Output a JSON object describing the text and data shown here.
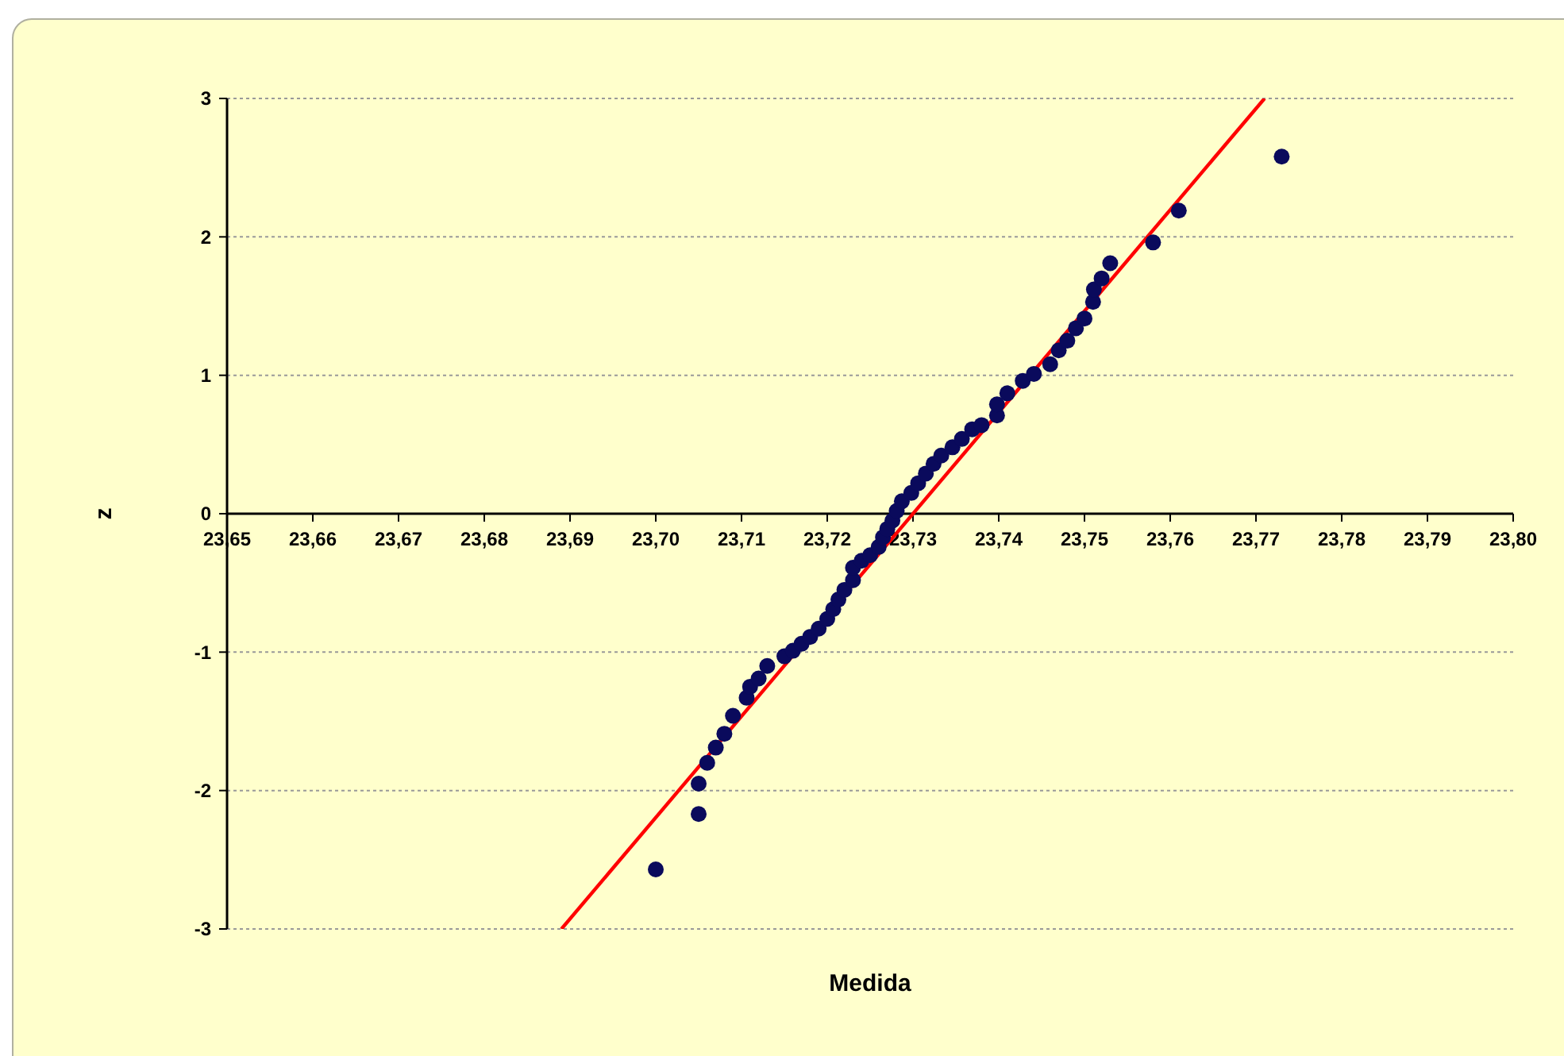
{
  "chart_data": {
    "type": "scatter",
    "xlabel": "Medida",
    "ylabel": "z",
    "marker": "circle",
    "grid": "y",
    "xlim": [
      23.65,
      23.8
    ],
    "ylim": [
      -3,
      3
    ],
    "xticks": [
      {
        "value": 23.65,
        "label": "23,65"
      },
      {
        "value": 23.66,
        "label": "23,66"
      },
      {
        "value": 23.67,
        "label": "23,67"
      },
      {
        "value": 23.68,
        "label": "23,68"
      },
      {
        "value": 23.69,
        "label": "23,69"
      },
      {
        "value": 23.7,
        "label": "23,70"
      },
      {
        "value": 23.71,
        "label": "23,71"
      },
      {
        "value": 23.72,
        "label": "23,72"
      },
      {
        "value": 23.73,
        "label": "23,73"
      },
      {
        "value": 23.74,
        "label": "23,74"
      },
      {
        "value": 23.75,
        "label": "23,75"
      },
      {
        "value": 23.76,
        "label": "23,76"
      },
      {
        "value": 23.77,
        "label": "23,77"
      },
      {
        "value": 23.78,
        "label": "23,78"
      },
      {
        "value": 23.79,
        "label": "23,79"
      },
      {
        "value": 23.8,
        "label": "23,80"
      }
    ],
    "yticks": [
      -3,
      -2,
      -1,
      0,
      1,
      2,
      3
    ],
    "series": [
      {
        "type": "line",
        "color": "#ff0000",
        "marker": "none",
        "x": [
          23.689,
          23.771
        ],
        "values": [
          -3,
          3
        ]
      },
      {
        "color": "#0a0a5c",
        "x": [
          23.7,
          23.705,
          23.705,
          23.706,
          23.707,
          23.708,
          23.709,
          23.7106,
          23.711,
          23.712,
          23.713,
          23.715,
          23.716,
          23.717,
          23.718,
          23.719,
          23.72,
          23.7207,
          23.7213,
          23.722,
          23.723,
          23.723,
          23.724,
          23.725,
          23.726,
          23.7265,
          23.727,
          23.7276,
          23.7281,
          23.7287,
          23.7298,
          23.7306,
          23.7315,
          23.7324,
          23.7333,
          23.7346,
          23.7357,
          23.7369,
          23.738,
          23.7398,
          23.7398,
          23.741,
          23.7428,
          23.7441,
          23.746,
          23.747,
          23.748,
          23.749,
          23.75,
          23.751,
          23.7511,
          23.752,
          23.753,
          23.758,
          23.761,
          23.773
        ],
        "values": [
          -2.57,
          -2.17,
          -1.95,
          -1.8,
          -1.69,
          -1.59,
          -1.46,
          -1.33,
          -1.25,
          -1.19,
          -1.1,
          -1.03,
          -0.99,
          -0.94,
          -0.89,
          -0.83,
          -0.76,
          -0.69,
          -0.62,
          -0.55,
          -0.48,
          -0.39,
          -0.34,
          -0.3,
          -0.24,
          -0.17,
          -0.11,
          -0.05,
          0.02,
          0.09,
          0.15,
          0.22,
          0.29,
          0.36,
          0.42,
          0.48,
          0.54,
          0.61,
          0.64,
          0.71,
          0.79,
          0.87,
          0.96,
          1.01,
          1.08,
          1.18,
          1.25,
          1.34,
          1.41,
          1.53,
          1.62,
          1.7,
          1.81,
          1.96,
          2.19,
          2.58
        ]
      }
    ]
  }
}
